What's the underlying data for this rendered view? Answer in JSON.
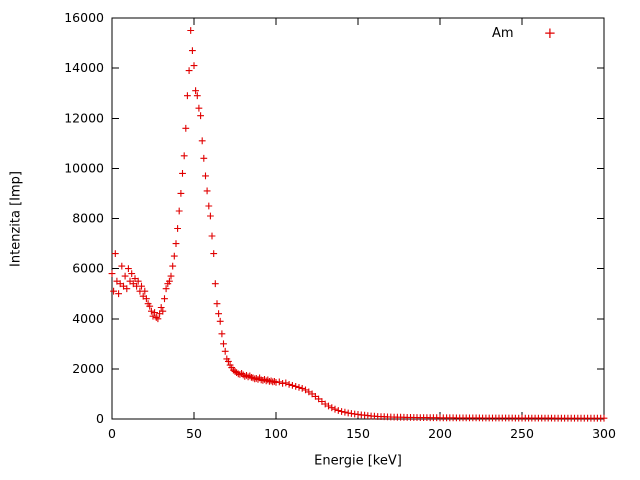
{
  "figure": {
    "background": "#ffffff",
    "border_color": "#000000",
    "text_color": "#000000"
  },
  "chart_data": {
    "type": "scatter",
    "title": "",
    "xlabel": "Energie [keV]",
    "ylabel": "Intenzita [Imp]",
    "xlim": [
      0,
      300
    ],
    "ylim": [
      0,
      16000
    ],
    "x_ticks": [
      0,
      50,
      100,
      150,
      200,
      250,
      300
    ],
    "y_ticks": [
      0,
      2000,
      4000,
      6000,
      8000,
      10000,
      12000,
      14000,
      16000
    ],
    "grid": false,
    "legend_position": "top-right",
    "marker": "plus",
    "legend_marker_glyph": "+",
    "series": [
      {
        "name": "Am",
        "color": "#e00000",
        "points": [
          [
            0,
            5800
          ],
          [
            1,
            5100
          ],
          [
            2,
            6600
          ],
          [
            3,
            5500
          ],
          [
            4,
            5000
          ],
          [
            5,
            5400
          ],
          [
            6,
            6100
          ],
          [
            7,
            5300
          ],
          [
            8,
            5700
          ],
          [
            9,
            5200
          ],
          [
            10,
            6000
          ],
          [
            11,
            5500
          ],
          [
            12,
            5800
          ],
          [
            13,
            5400
          ],
          [
            14,
            5600
          ],
          [
            15,
            5300
          ],
          [
            16,
            5500
          ],
          [
            17,
            5100
          ],
          [
            18,
            5300
          ],
          [
            19,
            4900
          ],
          [
            20,
            5100
          ],
          [
            21,
            4800
          ],
          [
            22,
            4600
          ],
          [
            23,
            4500
          ],
          [
            24,
            4300
          ],
          [
            25,
            4100
          ],
          [
            26,
            4250
          ],
          [
            27,
            4050
          ],
          [
            28,
            4000
          ],
          [
            29,
            4200
          ],
          [
            30,
            4450
          ],
          [
            31,
            4300
          ],
          [
            32,
            4800
          ],
          [
            33,
            5200
          ],
          [
            34,
            5400
          ],
          [
            35,
            5500
          ],
          [
            36,
            5700
          ],
          [
            37,
            6100
          ],
          [
            38,
            6500
          ],
          [
            39,
            7000
          ],
          [
            40,
            7600
          ],
          [
            41,
            8300
          ],
          [
            42,
            9000
          ],
          [
            43,
            9800
          ],
          [
            44,
            10500
          ],
          [
            45,
            11600
          ],
          [
            46,
            12900
          ],
          [
            47,
            13900
          ],
          [
            48,
            15500
          ],
          [
            49,
            14700
          ],
          [
            50,
            14100
          ],
          [
            51,
            13100
          ],
          [
            52,
            12900
          ],
          [
            53,
            12400
          ],
          [
            54,
            12100
          ],
          [
            55,
            11100
          ],
          [
            56,
            10400
          ],
          [
            57,
            9700
          ],
          [
            58,
            9100
          ],
          [
            59,
            8500
          ],
          [
            60,
            8100
          ],
          [
            61,
            7300
          ],
          [
            62,
            6600
          ],
          [
            63,
            5400
          ],
          [
            64,
            4600
          ],
          [
            65,
            4200
          ],
          [
            66,
            3900
          ],
          [
            67,
            3400
          ],
          [
            68,
            3000
          ],
          [
            69,
            2700
          ],
          [
            70,
            2400
          ],
          [
            71,
            2300
          ],
          [
            72,
            2150
          ],
          [
            73,
            2050
          ],
          [
            74,
            1950
          ],
          [
            75,
            1900
          ],
          [
            76,
            1850
          ],
          [
            77,
            1800
          ],
          [
            78,
            1780
          ],
          [
            79,
            1820
          ],
          [
            80,
            1760
          ],
          [
            81,
            1700
          ],
          [
            82,
            1740
          ],
          [
            83,
            1680
          ],
          [
            84,
            1720
          ],
          [
            85,
            1660
          ],
          [
            86,
            1640
          ],
          [
            87,
            1600
          ],
          [
            88,
            1620
          ],
          [
            89,
            1580
          ],
          [
            90,
            1640
          ],
          [
            91,
            1560
          ],
          [
            92,
            1540
          ],
          [
            93,
            1580
          ],
          [
            94,
            1520
          ],
          [
            95,
            1560
          ],
          [
            96,
            1500
          ],
          [
            97,
            1520
          ],
          [
            98,
            1480
          ],
          [
            99,
            1500
          ],
          [
            100,
            1460
          ],
          [
            102,
            1480
          ],
          [
            104,
            1420
          ],
          [
            106,
            1440
          ],
          [
            108,
            1380
          ],
          [
            110,
            1340
          ],
          [
            112,
            1300
          ],
          [
            114,
            1260
          ],
          [
            116,
            1220
          ],
          [
            118,
            1160
          ],
          [
            120,
            1080
          ],
          [
            122,
            1000
          ],
          [
            124,
            900
          ],
          [
            126,
            800
          ],
          [
            128,
            700
          ],
          [
            130,
            600
          ],
          [
            132,
            520
          ],
          [
            134,
            450
          ],
          [
            136,
            390
          ],
          [
            138,
            340
          ],
          [
            140,
            300
          ],
          [
            142,
            270
          ],
          [
            144,
            240
          ],
          [
            146,
            220
          ],
          [
            148,
            200
          ],
          [
            150,
            185
          ],
          [
            152,
            165
          ],
          [
            154,
            150
          ],
          [
            156,
            135
          ],
          [
            158,
            120
          ],
          [
            160,
            110
          ],
          [
            162,
            100
          ],
          [
            164,
            95
          ],
          [
            166,
            90
          ],
          [
            168,
            85
          ],
          [
            170,
            80
          ],
          [
            172,
            75
          ],
          [
            174,
            72
          ],
          [
            176,
            70
          ],
          [
            178,
            68
          ],
          [
            180,
            65
          ],
          [
            182,
            63
          ],
          [
            184,
            60
          ],
          [
            186,
            58
          ],
          [
            188,
            57
          ],
          [
            190,
            55
          ],
          [
            192,
            54
          ],
          [
            194,
            52
          ],
          [
            196,
            51
          ],
          [
            198,
            50
          ],
          [
            200,
            49
          ],
          [
            202,
            48
          ],
          [
            204,
            47
          ],
          [
            206,
            47
          ],
          [
            208,
            46
          ],
          [
            210,
            45
          ],
          [
            212,
            45
          ],
          [
            214,
            44
          ],
          [
            216,
            44
          ],
          [
            218,
            43
          ],
          [
            220,
            43
          ],
          [
            222,
            42
          ],
          [
            224,
            42
          ],
          [
            226,
            41
          ],
          [
            228,
            41
          ],
          [
            230,
            40
          ],
          [
            232,
            40
          ],
          [
            234,
            40
          ],
          [
            236,
            39
          ],
          [
            238,
            39
          ],
          [
            240,
            38
          ],
          [
            242,
            38
          ],
          [
            244,
            38
          ],
          [
            246,
            37
          ],
          [
            248,
            37
          ],
          [
            250,
            37
          ],
          [
            252,
            36
          ],
          [
            254,
            36
          ],
          [
            256,
            36
          ],
          [
            258,
            35
          ],
          [
            260,
            35
          ],
          [
            262,
            35
          ],
          [
            264,
            34
          ],
          [
            266,
            34
          ],
          [
            268,
            34
          ],
          [
            270,
            33
          ],
          [
            272,
            33
          ],
          [
            274,
            33
          ],
          [
            276,
            33
          ],
          [
            278,
            32
          ],
          [
            280,
            32
          ],
          [
            282,
            32
          ],
          [
            284,
            32
          ],
          [
            286,
            31
          ],
          [
            288,
            31
          ],
          [
            290,
            31
          ],
          [
            292,
            31
          ],
          [
            294,
            30
          ],
          [
            296,
            30
          ],
          [
            298,
            30
          ],
          [
            300,
            30
          ]
        ]
      }
    ]
  }
}
